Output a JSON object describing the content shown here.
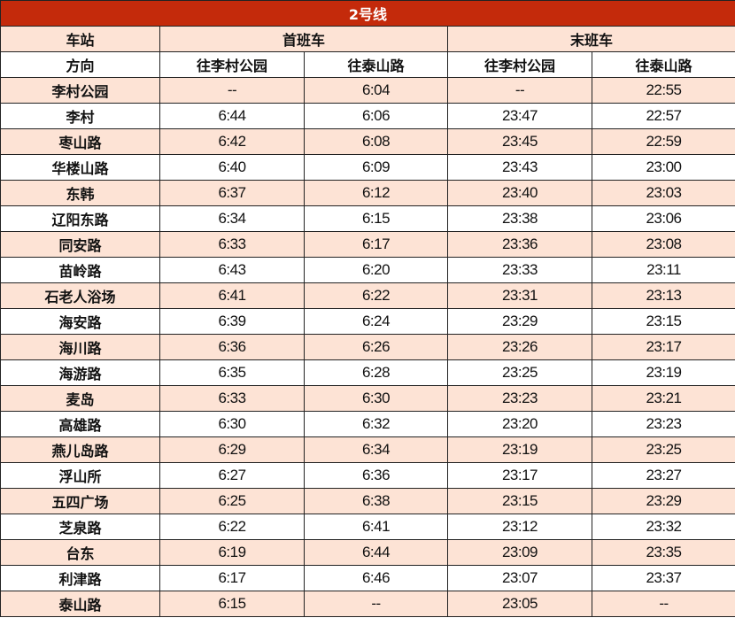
{
  "title": "2号线",
  "header": {
    "station": "车站",
    "first_train": "首班车",
    "last_train": "末班车",
    "direction": "方向",
    "dir_licun": "往李村公园",
    "dir_taishan": "往泰山路"
  },
  "colors": {
    "title_bg": "#c42a0b",
    "stripe": "#fde3d5"
  },
  "rows": [
    {
      "station": "李村公园",
      "first_licun": "--",
      "first_taishan": "6:04",
      "last_licun": "--",
      "last_taishan": "22:55"
    },
    {
      "station": "李村",
      "first_licun": "6:44",
      "first_taishan": "6:06",
      "last_licun": "23:47",
      "last_taishan": "22:57"
    },
    {
      "station": "枣山路",
      "first_licun": "6:42",
      "first_taishan": "6:08",
      "last_licun": "23:45",
      "last_taishan": "22:59"
    },
    {
      "station": "华楼山路",
      "first_licun": "6:40",
      "first_taishan": "6:09",
      "last_licun": "23:43",
      "last_taishan": "23:00"
    },
    {
      "station": "东韩",
      "first_licun": "6:37",
      "first_taishan": "6:12",
      "last_licun": "23:40",
      "last_taishan": "23:03"
    },
    {
      "station": "辽阳东路",
      "first_licun": "6:34",
      "first_taishan": "6:15",
      "last_licun": "23:38",
      "last_taishan": "23:06"
    },
    {
      "station": "同安路",
      "first_licun": "6:33",
      "first_taishan": "6:17",
      "last_licun": "23:36",
      "last_taishan": "23:08"
    },
    {
      "station": "苗岭路",
      "first_licun": "6:43",
      "first_taishan": "6:20",
      "last_licun": "23:33",
      "last_taishan": "23:11"
    },
    {
      "station": "石老人浴场",
      "first_licun": "6:41",
      "first_taishan": "6:22",
      "last_licun": "23:31",
      "last_taishan": "23:13"
    },
    {
      "station": "海安路",
      "first_licun": "6:39",
      "first_taishan": "6:24",
      "last_licun": "23:29",
      "last_taishan": "23:15"
    },
    {
      "station": "海川路",
      "first_licun": "6:36",
      "first_taishan": "6:26",
      "last_licun": "23:26",
      "last_taishan": "23:17"
    },
    {
      "station": "海游路",
      "first_licun": "6:35",
      "first_taishan": "6:28",
      "last_licun": "23:25",
      "last_taishan": "23:19"
    },
    {
      "station": "麦岛",
      "first_licun": "6:33",
      "first_taishan": "6:30",
      "last_licun": "23:23",
      "last_taishan": "23:21"
    },
    {
      "station": "高雄路",
      "first_licun": "6:30",
      "first_taishan": "6:32",
      "last_licun": "23:20",
      "last_taishan": "23:23"
    },
    {
      "station": "燕儿岛路",
      "first_licun": "6:29",
      "first_taishan": "6:34",
      "last_licun": "23:19",
      "last_taishan": "23:25"
    },
    {
      "station": "浮山所",
      "first_licun": "6:27",
      "first_taishan": "6:36",
      "last_licun": "23:17",
      "last_taishan": "23:27"
    },
    {
      "station": "五四广场",
      "first_licun": "6:25",
      "first_taishan": "6:38",
      "last_licun": "23:15",
      "last_taishan": "23:29"
    },
    {
      "station": "芝泉路",
      "first_licun": "6:22",
      "first_taishan": "6:41",
      "last_licun": "23:12",
      "last_taishan": "23:32"
    },
    {
      "station": "台东",
      "first_licun": "6:19",
      "first_taishan": "6:44",
      "last_licun": "23:09",
      "last_taishan": "23:35"
    },
    {
      "station": "利津路",
      "first_licun": "6:17",
      "first_taishan": "6:46",
      "last_licun": "23:07",
      "last_taishan": "23:37"
    },
    {
      "station": "泰山路",
      "first_licun": "6:15",
      "first_taishan": "--",
      "last_licun": "23:05",
      "last_taishan": "--"
    }
  ]
}
